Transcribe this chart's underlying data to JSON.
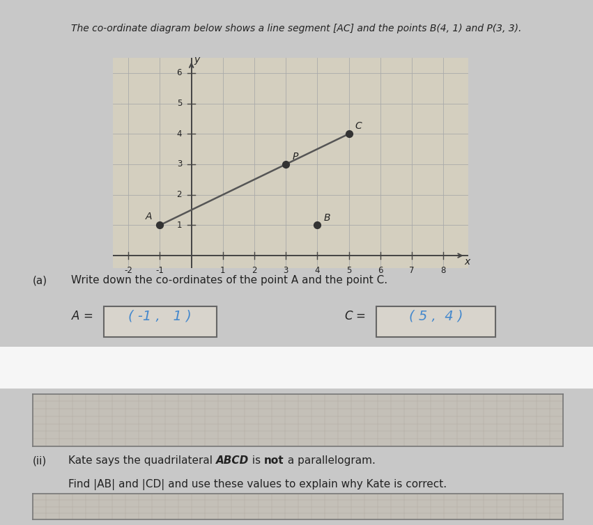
{
  "title": "The co-ordinate diagram below shows a line segment [AC] and the points B(4, 1) and P(3, 3).",
  "title_plain": "The co-ordinate diagram below shows a line segment [AC] and the points B(4, 1) and P(3, 3).",
  "bg_color": "#c8c8c8",
  "graph_bg": "#d8d4cc",
  "grid_color": "#aaaaaa",
  "axis_color": "#444444",
  "line_color": "#555555",
  "point_color": "#333333",
  "A": [
    -1,
    1
  ],
  "C": [
    5,
    4
  ],
  "B": [
    4,
    1
  ],
  "P": [
    3,
    3
  ],
  "xmin": -2,
  "xmax": 8,
  "ymin": 0,
  "ymax": 6,
  "xticks": [
    -2,
    -1,
    1,
    2,
    3,
    4,
    5,
    6,
    7,
    8
  ],
  "yticks": [
    1,
    2,
    3,
    4,
    5,
    6
  ],
  "part_a_label": "(a)",
  "part_a_text": "Write down the co-ordinates of the point A and the point C.",
  "part_ii_label": "(ii)",
  "part_ii_line1a": "Kate says the quadrilateral ",
  "part_ii_line1b": "ABCD",
  "part_ii_line1c": " is ",
  "part_ii_line1d": "not",
  "part_ii_line1e": " a parallelogram.",
  "part_ii_line2": "Find |AB| and |CD| and use these values to explain why Kate is correct.",
  "handwritten_color": "#4488cc",
  "box_edge_color": "#666666",
  "graph_box_color": "#d4cfbf",
  "answer_box_bg": "#d8d4cc",
  "grid_box_bg": "#c4c0b8",
  "grid_line_color": "#b0aba0"
}
